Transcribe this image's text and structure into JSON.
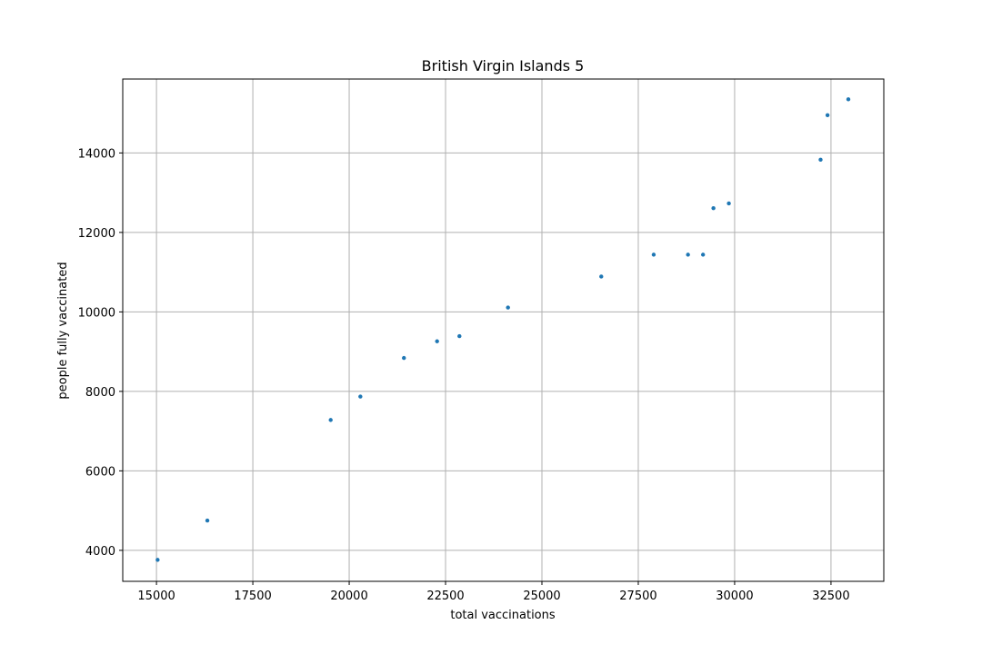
{
  "chart_data": {
    "type": "scatter",
    "title": "British Virgin Islands 5",
    "xlabel": "total vaccinations",
    "ylabel": "people fully vaccinated",
    "xlim": [
      14125,
      33870
    ],
    "ylim": [
      3220,
      15860
    ],
    "xticks": [
      15000,
      17500,
      20000,
      22500,
      25000,
      27500,
      30000,
      32500
    ],
    "yticks": [
      4000,
      6000,
      8000,
      10000,
      12000,
      14000
    ],
    "grid": true,
    "marker_color": "#1f77b4",
    "points": [
      {
        "x": 15030,
        "y": 3760
      },
      {
        "x": 16320,
        "y": 4750
      },
      {
        "x": 19520,
        "y": 7280
      },
      {
        "x": 20290,
        "y": 7870
      },
      {
        "x": 21420,
        "y": 8840
      },
      {
        "x": 22280,
        "y": 9260
      },
      {
        "x": 22860,
        "y": 9390
      },
      {
        "x": 24120,
        "y": 10110
      },
      {
        "x": 26540,
        "y": 10890
      },
      {
        "x": 27900,
        "y": 11440
      },
      {
        "x": 28790,
        "y": 11440
      },
      {
        "x": 29180,
        "y": 11440
      },
      {
        "x": 29450,
        "y": 12610
      },
      {
        "x": 29850,
        "y": 12730
      },
      {
        "x": 32230,
        "y": 13830
      },
      {
        "x": 32410,
        "y": 14950
      },
      {
        "x": 32950,
        "y": 15350
      }
    ]
  }
}
